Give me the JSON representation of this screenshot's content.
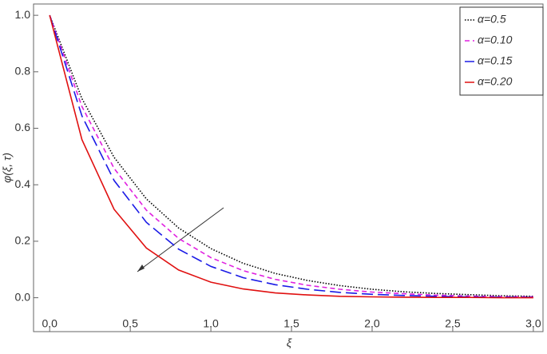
{
  "chart_data": {
    "type": "line",
    "x_label": "ξ",
    "y_label": "φ(ξ, τ)",
    "x": [
      0,
      0.2,
      0.4,
      0.6,
      0.8,
      1,
      1.2,
      1.4,
      1.6,
      1.8,
      2,
      2.2,
      2.4,
      2.6,
      2.8,
      3
    ],
    "series": [
      {
        "name": "α=0.5",
        "color": "#000000",
        "dash": "1.5,2",
        "values": [
          1,
          0.705,
          0.497,
          0.35,
          0.247,
          0.174,
          0.122,
          0.086,
          0.061,
          0.043,
          0.03,
          0.021,
          0.015,
          0.011,
          0.007,
          0.005
        ]
      },
      {
        "name": "α=0.10",
        "color": "#e020e0",
        "dash": "6,4",
        "values": [
          1,
          0.677,
          0.458,
          0.31,
          0.21,
          0.142,
          0.096,
          0.065,
          0.044,
          0.03,
          0.02,
          0.014,
          0.009,
          0.006,
          0.004,
          0.003
        ]
      },
      {
        "name": "α=0.15",
        "color": "#1a1ae6",
        "dash": "14,6",
        "values": [
          1,
          0.644,
          0.415,
          0.267,
          0.172,
          0.111,
          0.071,
          0.046,
          0.03,
          0.019,
          0.012,
          0.008,
          0.005,
          0.003,
          0.002,
          0.001
        ]
      },
      {
        "name": "α=0.20",
        "color": "#e01010",
        "dash": "",
        "values": [
          1,
          0.56,
          0.313,
          0.176,
          0.098,
          0.055,
          0.031,
          0.017,
          0.01,
          0.005,
          0.003,
          0.002,
          0.001,
          0.001,
          0,
          0
        ]
      }
    ],
    "xlim": [
      -0.1,
      3.06
    ],
    "ylim": [
      -0.12,
      1.04
    ],
    "xticks": [
      {
        "value": 0,
        "label": "0.0"
      },
      0.5,
      {
        "value": 1,
        "label": "1.0"
      },
      1.5,
      {
        "value": 2,
        "label": "2.0"
      },
      2.5,
      {
        "value": 3,
        "label": "3.0"
      }
    ],
    "yticks": [
      {
        "value": 0,
        "label": "0.0"
      },
      0.2,
      0.4,
      0.6,
      0.8,
      {
        "value": 1,
        "label": "1.0"
      }
    ],
    "legend": "top-right"
  }
}
